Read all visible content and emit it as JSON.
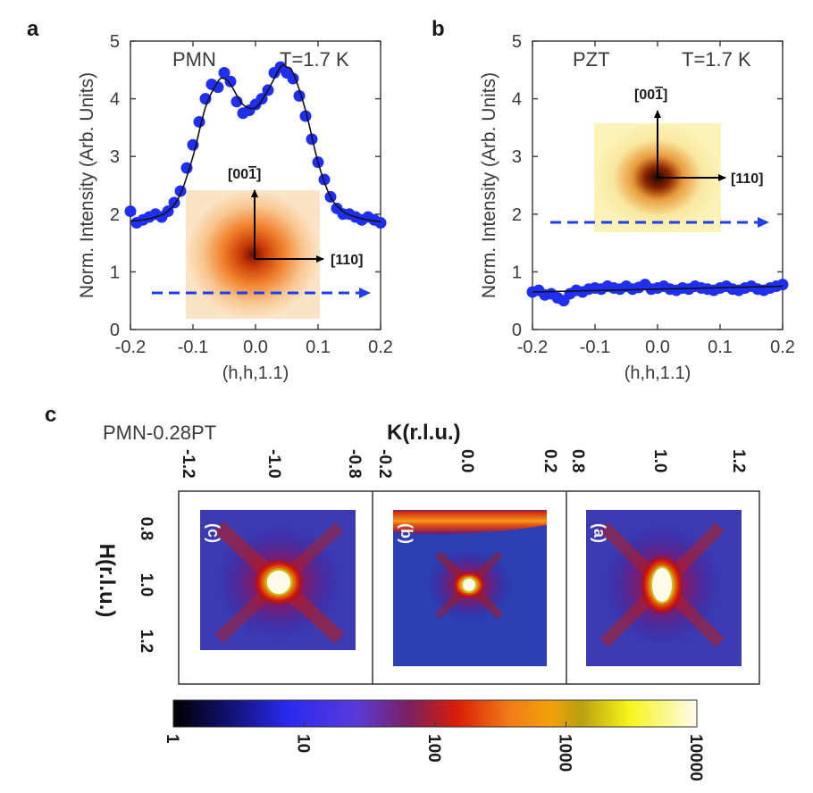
{
  "panel_labels": {
    "a": "a",
    "b": "b",
    "c": "c"
  },
  "colors": {
    "points": "#1f2ff0",
    "fit": "#111111",
    "arrow_dashed": "#1f3fe6"
  },
  "chart_data": [
    {
      "id": "a",
      "type": "scatter",
      "title": "PMN",
      "temperature": "T=1.7 K",
      "xlabel": "(h,h,1.1)",
      "ylabel": "Norm. Intensity (Arb. Units)",
      "xlim": [
        -0.2,
        0.2
      ],
      "ylim": [
        0,
        5
      ],
      "xticks": [
        "-0.2",
        "-0.1",
        "0.0",
        "0.1",
        "0.2"
      ],
      "yticks": [
        "0",
        "1",
        "2",
        "3",
        "4",
        "5"
      ],
      "inset_labels": {
        "vertical": "[00",
        "vertical_bar_digit": "1",
        "vertical_close": "]",
        "horizontal": "[110]"
      },
      "points": {
        "x": [
          -0.2,
          -0.19,
          -0.18,
          -0.17,
          -0.16,
          -0.15,
          -0.14,
          -0.13,
          -0.12,
          -0.11,
          -0.1,
          -0.09,
          -0.08,
          -0.07,
          -0.06,
          -0.05,
          -0.04,
          -0.03,
          -0.02,
          -0.01,
          0.0,
          0.01,
          0.02,
          0.03,
          0.04,
          0.05,
          0.06,
          0.07,
          0.08,
          0.09,
          0.1,
          0.11,
          0.12,
          0.13,
          0.14,
          0.15,
          0.16,
          0.17,
          0.18,
          0.19,
          0.2
        ],
        "y": [
          2.05,
          1.85,
          1.9,
          1.95,
          2.0,
          1.95,
          2.05,
          2.2,
          2.4,
          2.8,
          3.2,
          3.6,
          4.0,
          4.25,
          4.2,
          4.45,
          4.3,
          3.95,
          3.75,
          3.8,
          3.9,
          4.0,
          4.15,
          4.45,
          4.55,
          4.45,
          4.35,
          4.05,
          3.7,
          3.3,
          2.9,
          2.6,
          2.3,
          2.1,
          2.0,
          2.0,
          1.95,
          1.9,
          1.95,
          1.9,
          1.85
        ]
      },
      "fit": {
        "x": [
          -0.2,
          -0.18,
          -0.16,
          -0.14,
          -0.12,
          -0.1,
          -0.08,
          -0.06,
          -0.05,
          -0.04,
          -0.02,
          0.0,
          0.02,
          0.04,
          0.05,
          0.06,
          0.08,
          0.1,
          0.12,
          0.14,
          0.16,
          0.18,
          0.2
        ],
        "y": [
          1.88,
          1.9,
          1.95,
          2.05,
          2.35,
          3.0,
          3.85,
          4.3,
          4.35,
          4.25,
          3.9,
          3.85,
          4.15,
          4.55,
          4.55,
          4.45,
          3.8,
          2.9,
          2.3,
          2.05,
          1.95,
          1.9,
          1.87
        ]
      }
    },
    {
      "id": "b",
      "type": "scatter",
      "title": "PZT",
      "temperature": "T=1.7 K",
      "xlabel": "(h,h,1.1)",
      "ylabel": "Norm. Intensity (Arb. Units)",
      "xlim": [
        -0.2,
        0.2
      ],
      "ylim": [
        0,
        5
      ],
      "xticks": [
        "-0.2",
        "-0.1",
        "0.0",
        "0.1",
        "0.2"
      ],
      "yticks": [
        "0",
        "1",
        "2",
        "3",
        "4",
        "5"
      ],
      "inset_labels": {
        "vertical": "[00",
        "vertical_bar_digit": "1",
        "vertical_close": "]",
        "horizontal": "[110]"
      },
      "points": {
        "x": [
          -0.2,
          -0.19,
          -0.18,
          -0.17,
          -0.16,
          -0.15,
          -0.14,
          -0.13,
          -0.12,
          -0.11,
          -0.1,
          -0.09,
          -0.08,
          -0.07,
          -0.06,
          -0.05,
          -0.04,
          -0.03,
          -0.02,
          -0.01,
          0.0,
          0.01,
          0.02,
          0.03,
          0.04,
          0.05,
          0.06,
          0.07,
          0.08,
          0.09,
          0.1,
          0.11,
          0.12,
          0.13,
          0.14,
          0.15,
          0.16,
          0.17,
          0.18,
          0.19,
          0.2
        ],
        "y": [
          0.65,
          0.68,
          0.6,
          0.62,
          0.55,
          0.5,
          0.62,
          0.68,
          0.65,
          0.7,
          0.72,
          0.7,
          0.75,
          0.72,
          0.7,
          0.75,
          0.7,
          0.73,
          0.78,
          0.7,
          0.72,
          0.75,
          0.7,
          0.68,
          0.72,
          0.7,
          0.75,
          0.72,
          0.7,
          0.68,
          0.72,
          0.75,
          0.7,
          0.68,
          0.72,
          0.75,
          0.7,
          0.68,
          0.72,
          0.75,
          0.78
        ]
      },
      "fit": {
        "x": [
          -0.2,
          0.2
        ],
        "y": [
          0.65,
          0.75
        ]
      }
    },
    {
      "id": "c",
      "type": "heatmap",
      "title": "PMN-0.28PT",
      "xlabel": "K(r.l.u.)",
      "ylabel": "H(r.l.u.)",
      "yticks": [
        "0.8",
        "1.0",
        "1.2"
      ],
      "subpanels": [
        {
          "label": "(c)",
          "xticks": [
            "-1.2",
            "-1.0",
            "-0.8"
          ]
        },
        {
          "label": "(b)",
          "xticks": [
            "-0.2",
            "0.0",
            "0.2"
          ]
        },
        {
          "label": "(a)",
          "xticks": [
            "0.8",
            "1.0",
            "1.2"
          ]
        }
      ],
      "colorbar": {
        "scale": "log",
        "ticks": [
          "1",
          "10",
          "100",
          "1000",
          "10000"
        ]
      }
    }
  ]
}
